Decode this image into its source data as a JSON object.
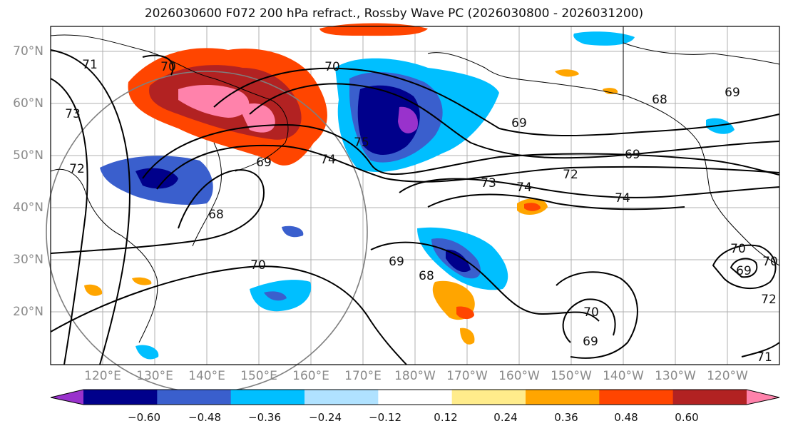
{
  "title": "2026030600 F072 200 hPa refract., Rossby Wave PC (2026030800 - 2026031200)",
  "axes": {
    "lat_labels": [
      "70°N",
      "60°N",
      "50°N",
      "40°N",
      "30°N",
      "20°N"
    ],
    "lon_labels": [
      "120°E",
      "130°E",
      "140°E",
      "150°E",
      "160°E",
      "170°E",
      "180°W",
      "170°W",
      "160°W",
      "150°W",
      "140°W",
      "130°W",
      "120°W"
    ]
  },
  "contour_labels": [
    "71",
    "70",
    "73",
    "72",
    "70",
    "69",
    "74",
    "75",
    "68",
    "70",
    "69",
    "68",
    "73",
    "74",
    "72",
    "69",
    "74",
    "69",
    "68",
    "69",
    "69",
    "70",
    "70",
    "69",
    "70",
    "72",
    "71"
  ],
  "colorbar": {
    "ticks": [
      "−0.60",
      "−0.48",
      "−0.36",
      "−0.24",
      "−0.12",
      "0.12",
      "0.24",
      "0.36",
      "0.48",
      "0.60"
    ],
    "colors": [
      "#9932cc",
      "#00008b",
      "#3a5fcd",
      "#00bfff",
      "#b0e2ff",
      "#ffffff",
      "#ffec8b",
      "#ffa500",
      "#ff4500",
      "#b22222",
      "#ff82ab"
    ]
  }
}
